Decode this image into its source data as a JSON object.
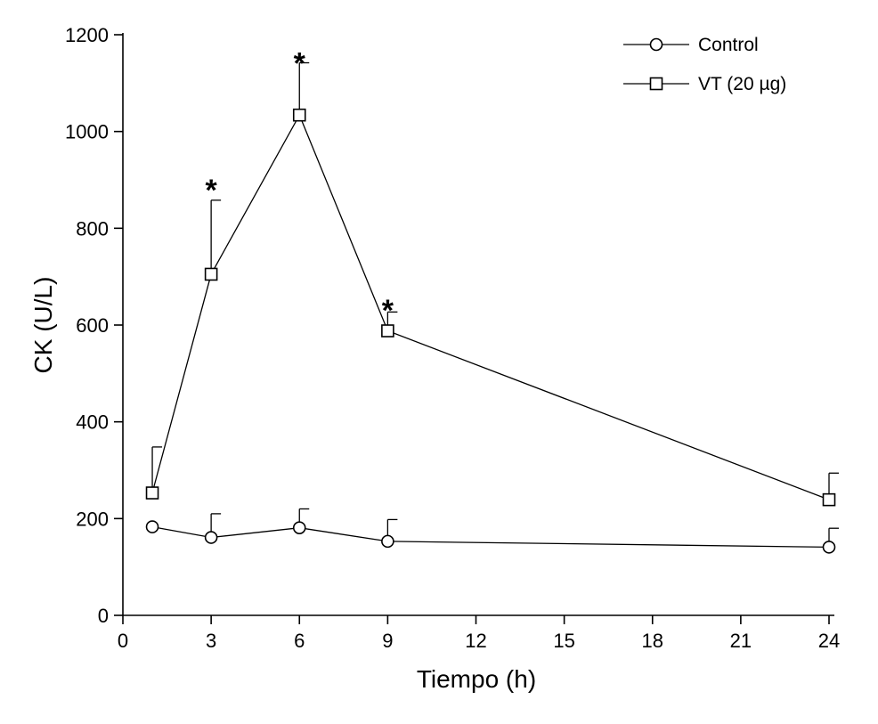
{
  "chart_data": {
    "type": "line",
    "title": "",
    "xlabel": "Tiempo (h)",
    "ylabel": "CK (U/L)",
    "xlim": [
      0,
      24
    ],
    "ylim": [
      0,
      1200
    ],
    "xticks": [
      0,
      3,
      6,
      9,
      12,
      15,
      18,
      21,
      24
    ],
    "yticks": [
      0,
      200,
      400,
      600,
      800,
      1000,
      1200
    ],
    "grid": false,
    "legend_position": "top-right",
    "series": [
      {
        "name": "Control",
        "marker": "circle",
        "color": "#000000",
        "x": [
          1,
          3,
          6,
          9,
          24
        ],
        "y": [
          183,
          161,
          181,
          153,
          141
        ],
        "error_upper": [
          183,
          210,
          220,
          198,
          180
        ]
      },
      {
        "name": "VT (20 µg)",
        "marker": "square",
        "color": "#000000",
        "x": [
          1,
          3,
          6,
          9,
          24
        ],
        "y": [
          253,
          705,
          1034,
          588,
          239
        ],
        "error_upper": [
          348,
          858,
          1142,
          627,
          294
        ]
      }
    ],
    "annotations": [
      {
        "text": "*",
        "x": 3,
        "y": 898
      },
      {
        "text": "*",
        "x": 6,
        "y": 1160
      },
      {
        "text": "*",
        "x": 9,
        "y": 650
      }
    ]
  }
}
